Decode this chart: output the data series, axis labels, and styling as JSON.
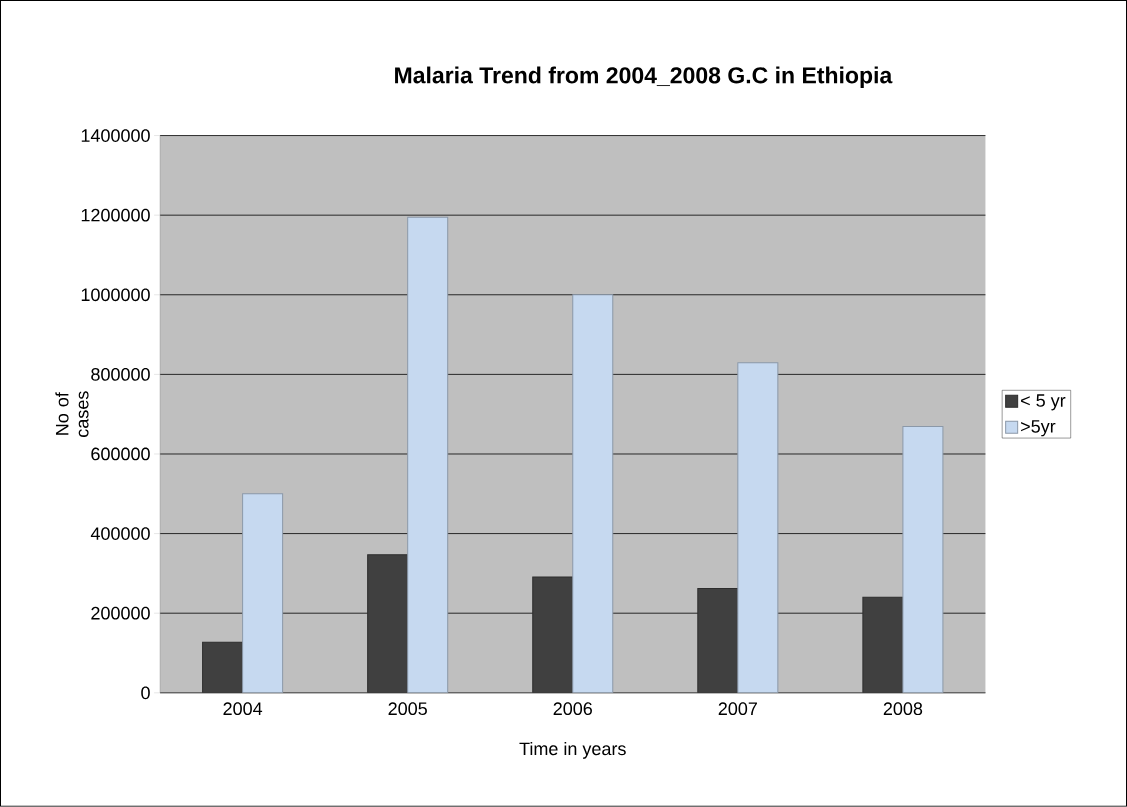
{
  "chart_data": {
    "type": "bar",
    "title": "Malaria Trend from 2004_2008 G.C in Ethiopia",
    "xlabel": "Time in years",
    "ylabel": "No of cases",
    "categories": [
      "2004",
      "2005",
      "2006",
      "2007",
      "2008"
    ],
    "series": [
      {
        "name": "< 5 yr",
        "color": "#404040",
        "values": [
          127000,
          347000,
          291000,
          262000,
          240000
        ]
      },
      {
        "name": ">5yr",
        "color": "#c6d9f0",
        "values": [
          500000,
          1195000,
          1000000,
          829000,
          669000
        ]
      }
    ],
    "ylim": [
      0,
      1400000
    ],
    "yticks": [
      0,
      200000,
      400000,
      600000,
      800000,
      1000000,
      1200000,
      1400000
    ],
    "grid": "y",
    "legend": "right"
  }
}
